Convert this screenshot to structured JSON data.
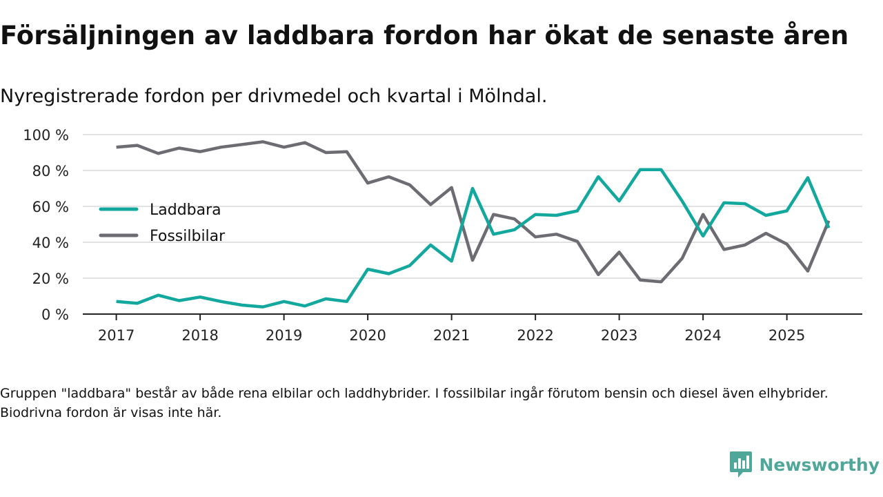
{
  "header": {
    "title": "Försäljningen av laddbara fordon har ökat de senaste åren",
    "subtitle": "Nyregistrerade fordon per drivmedel och kvartal i Mölndal."
  },
  "footer": {
    "note": "Gruppen \"laddbara\" består av både rena elbilar och laddhybrider. I fossilbilar ingår förutom bensin och diesel även elhybrider. Biodrivna fordon är visas inte här.",
    "brand": "Newsworthy",
    "brand_color": "#4fa79a"
  },
  "chart_data": {
    "type": "line",
    "title": "Försäljningen av laddbara fordon har ökat de senaste åren",
    "subtitle": "Nyregistrerade fordon per drivmedel och kvartal i Mölndal.",
    "xlabel": "",
    "ylabel": "",
    "x": [
      2017.0,
      2017.25,
      2017.5,
      2017.75,
      2018.0,
      2018.25,
      2018.5,
      2018.75,
      2019.0,
      2019.25,
      2019.5,
      2019.75,
      2020.0,
      2020.25,
      2020.5,
      2020.75,
      2021.0,
      2021.25,
      2021.5,
      2021.75,
      2022.0,
      2022.25,
      2022.5,
      2022.75,
      2023.0,
      2023.25,
      2023.5,
      2023.75,
      2024.0,
      2024.25,
      2024.5,
      2024.75,
      2025.0,
      2025.25,
      2025.5
    ],
    "xlim": [
      2016.6,
      2025.9
    ],
    "x_ticks": [
      2017,
      2018,
      2019,
      2020,
      2021,
      2022,
      2023,
      2024,
      2025
    ],
    "x_tick_labels": [
      "2017",
      "2018",
      "2019",
      "2020",
      "2021",
      "2022",
      "2023",
      "2024",
      "2025"
    ],
    "ylim": [
      0,
      100
    ],
    "y_ticks": [
      0,
      20,
      40,
      60,
      80,
      100
    ],
    "y_tick_labels": [
      "0 %",
      "20 %",
      "40 %",
      "60 %",
      "80 %",
      "100 %"
    ],
    "grid": true,
    "legend_position": "left",
    "series": [
      {
        "name": "Laddbara",
        "color": "#13a89e",
        "values": [
          7,
          6,
          10.5,
          7.5,
          9.5,
          7,
          5,
          4,
          7,
          4.5,
          8.5,
          7,
          25,
          22.5,
          27,
          38.5,
          29.5,
          70,
          44.5,
          47,
          55.5,
          55,
          57.5,
          76.5,
          63,
          80.5,
          80.5,
          63,
          43.5,
          62,
          61.5,
          55,
          57.5,
          76,
          48
        ]
      },
      {
        "name": "Fossilbilar",
        "color": "#6d6c73",
        "values": [
          93,
          94,
          89.5,
          92.5,
          90.5,
          93,
          94.5,
          96,
          93,
          95.5,
          90,
          90.5,
          73,
          76.5,
          72,
          61,
          70.5,
          30,
          55.5,
          53,
          43,
          44.5,
          40.5,
          22,
          34.5,
          19,
          18,
          31,
          55.5,
          36,
          38.5,
          45,
          39,
          24,
          52
        ]
      }
    ]
  }
}
